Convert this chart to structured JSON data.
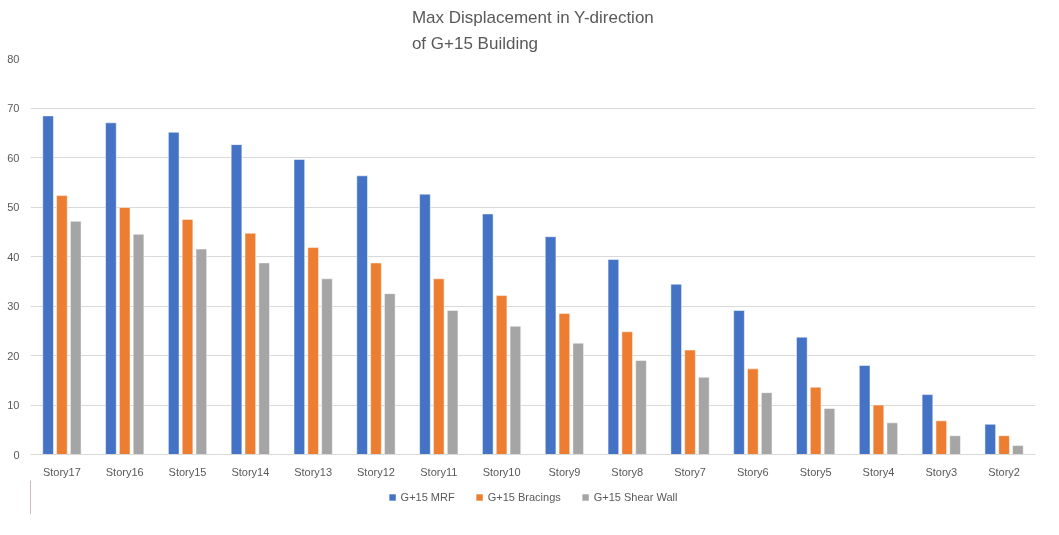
{
  "chart_data": {
    "type": "bar",
    "title": "Max Displacement in Y-direction\nof G+15 Building",
    "categories": [
      "Story17",
      "Story16",
      "Story15",
      "Story14",
      "Story13",
      "Story12",
      "Story11",
      "Story10",
      "Story9",
      "Story8",
      "Story7",
      "Story6",
      "Story5",
      "Story4",
      "Story3",
      "Story2"
    ],
    "series": [
      {
        "name": "G+15 MRF",
        "color": "#4472c4",
        "values": [
          68.4,
          67.0,
          65.1,
          62.6,
          59.6,
          56.3,
          52.6,
          48.6,
          44.0,
          39.4,
          34.4,
          29.1,
          23.7,
          18.0,
          12.1,
          6.1
        ]
      },
      {
        "name": "G+15 Bracings",
        "color": "#ed7d31",
        "values": [
          52.3,
          49.9,
          47.5,
          44.7,
          41.8,
          38.7,
          35.5,
          32.1,
          28.5,
          24.8,
          21.1,
          17.3,
          13.6,
          10.0,
          6.8,
          3.8
        ]
      },
      {
        "name": "G+15 Shear Wall",
        "color": "#a5a5a5",
        "values": [
          47.1,
          44.5,
          41.5,
          38.7,
          35.5,
          32.5,
          29.1,
          25.9,
          22.5,
          19.0,
          15.6,
          12.5,
          9.3,
          6.4,
          3.8,
          1.8
        ]
      }
    ],
    "ylim": [
      0,
      80
    ],
    "yticks": [
      0,
      10,
      20,
      30,
      40,
      50,
      60,
      70,
      80
    ],
    "grid": "y",
    "legend": "bottom"
  }
}
